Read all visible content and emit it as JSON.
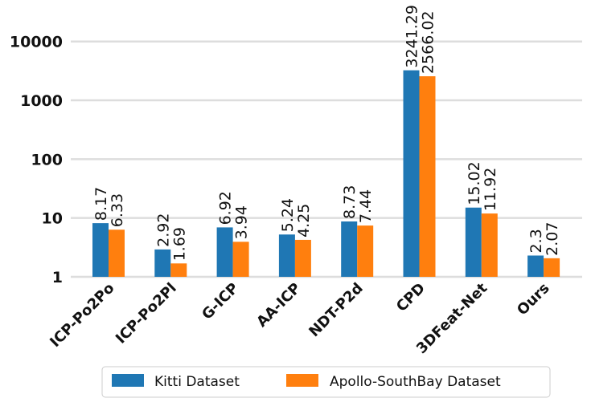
{
  "chart_data": {
    "type": "bar",
    "yscale": "log",
    "ylim": [
      1,
      18000
    ],
    "yticks": [
      {
        "value": 1,
        "label": "1"
      },
      {
        "value": 10,
        "label": "10"
      },
      {
        "value": 100,
        "label": "100"
      },
      {
        "value": 1000,
        "label": "1000"
      },
      {
        "value": 10000,
        "label": "10000"
      }
    ],
    "grid": true,
    "legend_position": "bottom",
    "categories": [
      "ICP-Po2Po",
      "ICP-Po2Pl",
      "G-ICP",
      "AA-ICP",
      "NDT-P2d",
      "CPD",
      "3DFeat-Net",
      "Ours"
    ],
    "series": [
      {
        "name": "Kitti Dataset",
        "color": "#1f77b4",
        "values": [
          8.17,
          2.92,
          6.92,
          5.24,
          8.73,
          3241.29,
          15.02,
          2.3
        ],
        "labels": [
          "8.17",
          "2.92",
          "6.92",
          "5.24",
          "8.73",
          "3241.29",
          "15.02",
          "2.3"
        ]
      },
      {
        "name": "Apollo-SouthBay Dataset",
        "color": "#ff7f0e",
        "values": [
          6.33,
          1.69,
          3.94,
          4.25,
          7.44,
          2566.02,
          11.92,
          2.07
        ],
        "labels": [
          "6.33",
          "1.69",
          "3.94",
          "4.25",
          "7.44",
          "2566.02",
          "11.92",
          "2.07"
        ]
      }
    ]
  }
}
